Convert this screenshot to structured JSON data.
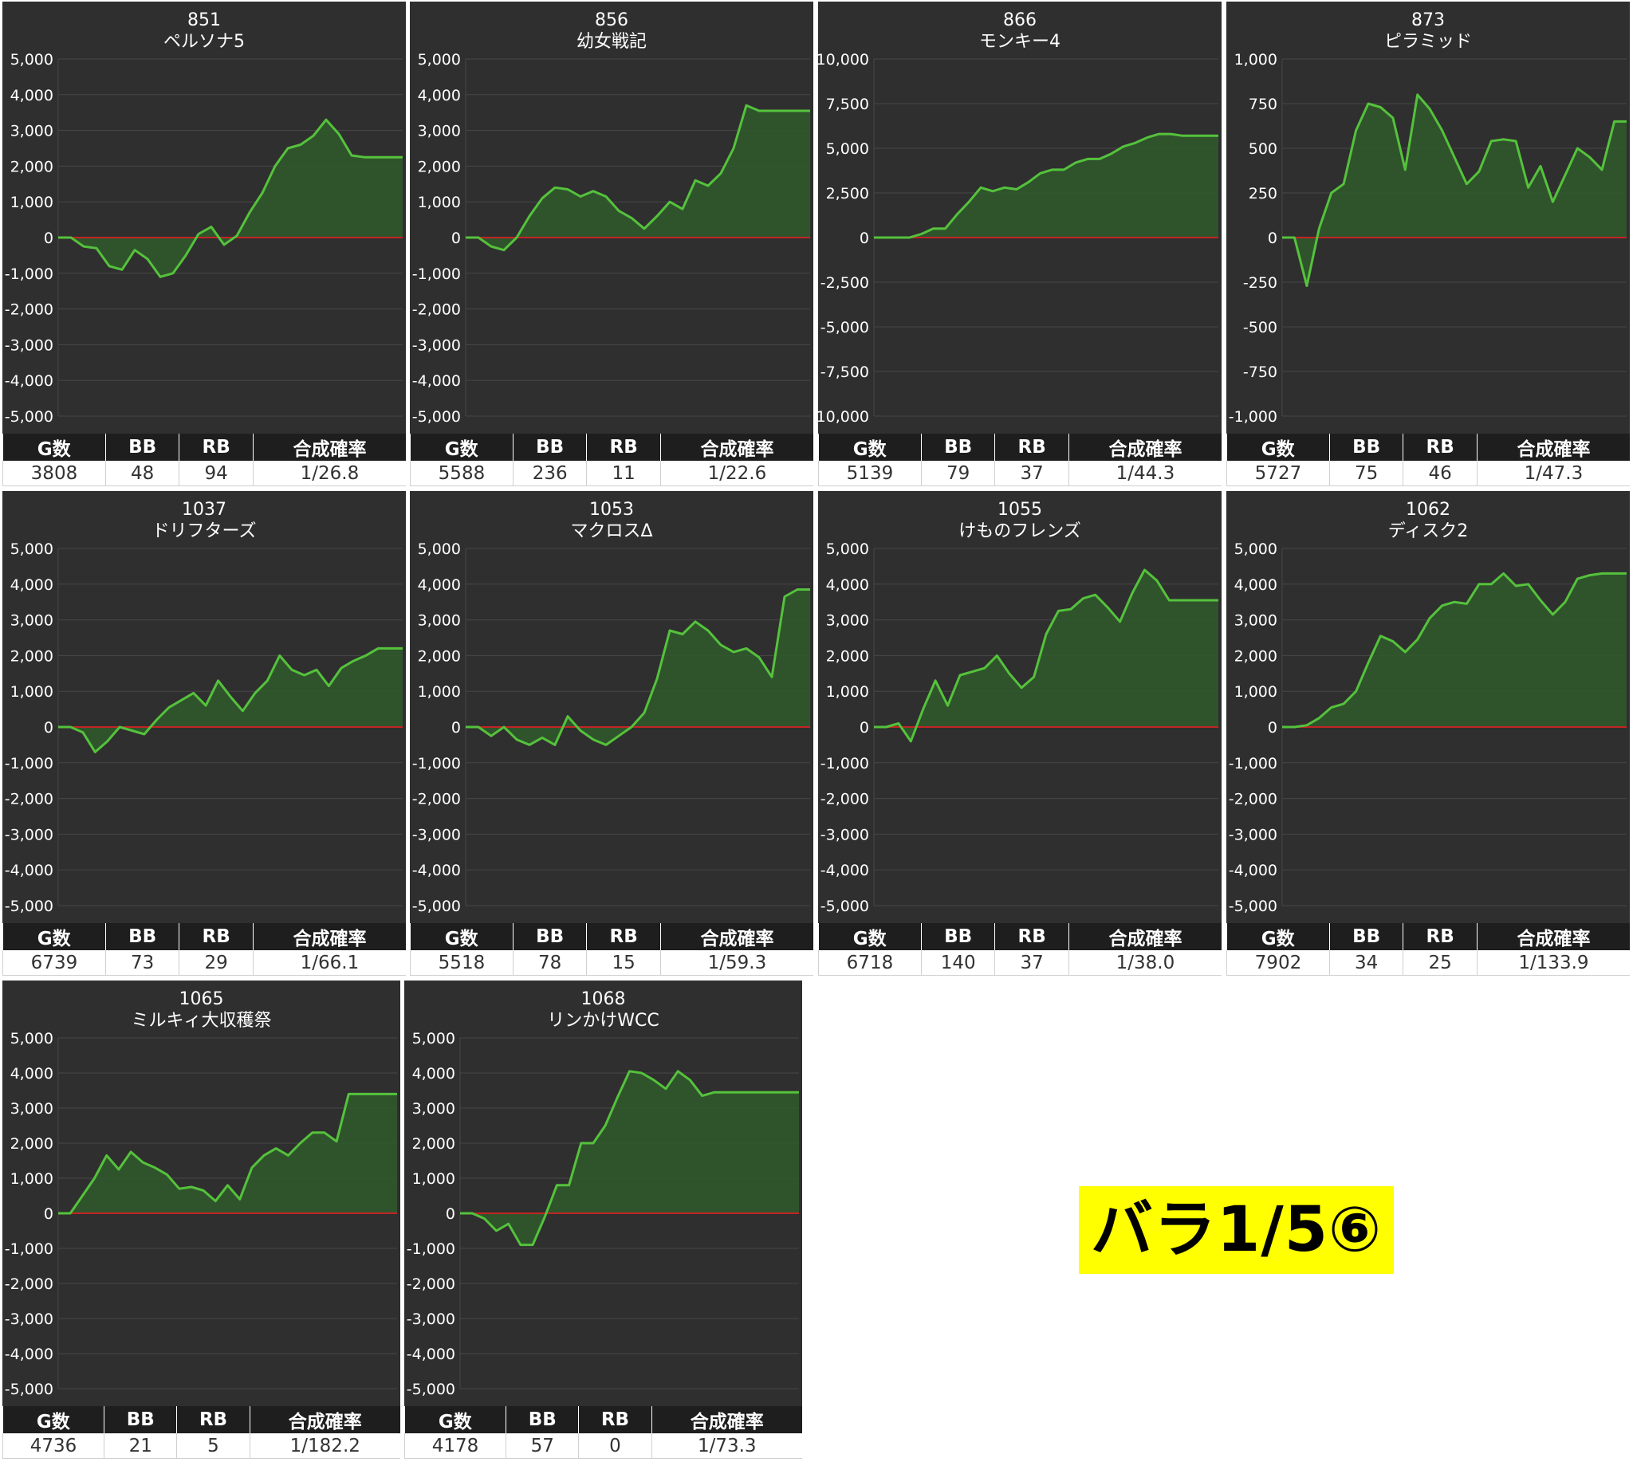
{
  "caption": "バラ1/5⑥",
  "colors": {
    "panel_bg": "#2f2f2f",
    "grid": "#474747",
    "line": "#55c23c",
    "area": "#2f5a2c",
    "zero_line": "#c42424",
    "header_bg": "#1e1e1e",
    "caption_bg": "#ffff00"
  },
  "table_headers": [
    "G数",
    "BB",
    "RB",
    "合成確率"
  ],
  "charts": [
    {
      "machine_no": "851",
      "name": "ペルソナ5",
      "stats": {
        "g": "3808",
        "bb": "48",
        "rb": "94",
        "rate": "1/26.8"
      },
      "chart_data": {
        "type": "area",
        "ylim": [
          -5000,
          5000
        ],
        "yticks": [
          "5,000",
          "4,000",
          "3,000",
          "2,000",
          "1,000",
          "0",
          "-1,000",
          "-2,000",
          "-3,000",
          "-4,000",
          "-5,000"
        ],
        "values": [
          0,
          0,
          -250,
          -300,
          -800,
          -900,
          -350,
          -600,
          -1100,
          -1000,
          -500,
          100,
          300,
          -200,
          50,
          700,
          1250,
          2000,
          2500,
          2600,
          2850,
          3300,
          2900,
          2300,
          2250,
          2250,
          2250,
          2250
        ]
      }
    },
    {
      "machine_no": "856",
      "name": "幼女戦記",
      "stats": {
        "g": "5588",
        "bb": "236",
        "rb": "11",
        "rate": "1/22.6"
      },
      "chart_data": {
        "type": "area",
        "ylim": [
          -5000,
          5000
        ],
        "yticks": [
          "5,000",
          "4,000",
          "3,000",
          "2,000",
          "1,000",
          "0",
          "-1,000",
          "-2,000",
          "-3,000",
          "-4,000",
          "-5,000"
        ],
        "values": [
          0,
          0,
          -250,
          -350,
          0,
          600,
          1100,
          1400,
          1350,
          1150,
          1300,
          1150,
          750,
          550,
          250,
          600,
          1000,
          800,
          1600,
          1450,
          1800,
          2500,
          3700,
          3550,
          3550,
          3550,
          3550,
          3550
        ]
      }
    },
    {
      "machine_no": "866",
      "name": "モンキー4",
      "stats": {
        "g": "5139",
        "bb": "79",
        "rb": "37",
        "rate": "1/44.3"
      },
      "chart_data": {
        "type": "area",
        "ylim": [
          -10000,
          10000
        ],
        "yticks": [
          "10,000",
          "7,500",
          "5,000",
          "2,500",
          "0",
          "-2,500",
          "-5,000",
          "-7,500",
          "-10,000"
        ],
        "values": [
          0,
          0,
          0,
          0,
          200,
          500,
          500,
          1300,
          2000,
          2800,
          2600,
          2800,
          2700,
          3100,
          3600,
          3800,
          3800,
          4200,
          4400,
          4400,
          4700,
          5100,
          5300,
          5600,
          5800,
          5800,
          5700,
          5700,
          5700,
          5700
        ]
      }
    },
    {
      "machine_no": "873",
      "name": "ピラミッド",
      "stats": {
        "g": "5727",
        "bb": "75",
        "rb": "46",
        "rate": "1/47.3"
      },
      "chart_data": {
        "type": "area",
        "ylim": [
          -1000,
          1000
        ],
        "yticks": [
          "1,000",
          "750",
          "500",
          "250",
          "0",
          "-250",
          "-500",
          "-750",
          "-1,000"
        ],
        "values": [
          0,
          0,
          -270,
          50,
          250,
          300,
          600,
          750,
          730,
          670,
          380,
          800,
          720,
          600,
          450,
          300,
          370,
          540,
          550,
          540,
          280,
          400,
          200,
          350,
          500,
          450,
          380,
          650,
          650
        ]
      }
    },
    {
      "machine_no": "1037",
      "name": "ドリフターズ",
      "stats": {
        "g": "6739",
        "bb": "73",
        "rb": "29",
        "rate": "1/66.1"
      },
      "chart_data": {
        "type": "area",
        "ylim": [
          -5000,
          5000
        ],
        "yticks": [
          "5,000",
          "4,000",
          "3,000",
          "2,000",
          "1,000",
          "0",
          "-1,000",
          "-2,000",
          "-3,000",
          "-4,000",
          "-5,000"
        ],
        "values": [
          0,
          0,
          -150,
          -700,
          -400,
          0,
          -100,
          -200,
          200,
          550,
          750,
          950,
          600,
          1300,
          850,
          450,
          950,
          1300,
          2000,
          1600,
          1450,
          1600,
          1150,
          1650,
          1850,
          2000,
          2200,
          2200,
          2200
        ]
      }
    },
    {
      "machine_no": "1053",
      "name": "マクロスΔ",
      "stats": {
        "g": "5518",
        "bb": "78",
        "rb": "15",
        "rate": "1/59.3"
      },
      "chart_data": {
        "type": "area",
        "ylim": [
          -5000,
          5000
        ],
        "yticks": [
          "5,000",
          "4,000",
          "3,000",
          "2,000",
          "1,000",
          "0",
          "-1,000",
          "-2,000",
          "-3,000",
          "-4,000",
          "-5,000"
        ],
        "values": [
          0,
          0,
          -250,
          0,
          -350,
          -500,
          -300,
          -500,
          300,
          -100,
          -350,
          -500,
          -250,
          0,
          400,
          1350,
          2700,
          2600,
          2950,
          2700,
          2300,
          2100,
          2200,
          1950,
          1400,
          3650,
          3850,
          3850
        ]
      }
    },
    {
      "machine_no": "1055",
      "name": "けものフレンズ",
      "stats": {
        "g": "6718",
        "bb": "140",
        "rb": "37",
        "rate": "1/38.0"
      },
      "chart_data": {
        "type": "area",
        "ylim": [
          -5000,
          5000
        ],
        "yticks": [
          "5,000",
          "4,000",
          "3,000",
          "2,000",
          "1,000",
          "0",
          "-1,000",
          "-2,000",
          "-3,000",
          "-4,000",
          "-5,000"
        ],
        "values": [
          0,
          0,
          100,
          -400,
          500,
          1300,
          600,
          1450,
          1550,
          1650,
          2000,
          1500,
          1100,
          1400,
          2600,
          3250,
          3300,
          3600,
          3700,
          3350,
          2950,
          3750,
          4400,
          4100,
          3550,
          3550,
          3550,
          3550,
          3550
        ]
      }
    },
    {
      "machine_no": "1062",
      "name": "ディスク2",
      "stats": {
        "g": "7902",
        "bb": "34",
        "rb": "25",
        "rate": "1/133.9"
      },
      "chart_data": {
        "type": "area",
        "ylim": [
          -5000,
          5000
        ],
        "yticks": [
          "5,000",
          "4,000",
          "3,000",
          "2,000",
          "1,000",
          "0",
          "-1,000",
          "-2,000",
          "-3,000",
          "-4,000",
          "-5,000"
        ],
        "values": [
          0,
          0,
          50,
          250,
          550,
          650,
          1000,
          1800,
          2550,
          2400,
          2100,
          2450,
          3050,
          3400,
          3500,
          3450,
          4000,
          4000,
          4300,
          3950,
          4000,
          3550,
          3150,
          3500,
          4150,
          4250,
          4300,
          4300,
          4300
        ]
      }
    },
    {
      "machine_no": "1065",
      "name": "ミルキィ大収穫祭",
      "stats": {
        "g": "4736",
        "bb": "21",
        "rb": "5",
        "rate": "1/182.2"
      },
      "chart_data": {
        "type": "area",
        "ylim": [
          -5000,
          5000
        ],
        "yticks": [
          "5,000",
          "4,000",
          "3,000",
          "2,000",
          "1,000",
          "0",
          "-1,000",
          "-2,000",
          "-3,000",
          "-4,000",
          "-5,000"
        ],
        "values": [
          0,
          0,
          500,
          1000,
          1650,
          1250,
          1750,
          1450,
          1300,
          1100,
          700,
          750,
          650,
          350,
          800,
          400,
          1300,
          1650,
          1850,
          1650,
          2000,
          2300,
          2300,
          2050,
          3400,
          3400,
          3400,
          3400,
          3400
        ]
      }
    },
    {
      "machine_no": "1068",
      "name": "リンかけWCC",
      "stats": {
        "g": "4178",
        "bb": "57",
        "rb": "0",
        "rate": "1/73.3"
      },
      "chart_data": {
        "type": "area",
        "ylim": [
          -5000,
          5000
        ],
        "yticks": [
          "5,000",
          "4,000",
          "3,000",
          "2,000",
          "1,000",
          "0",
          "-1,000",
          "-2,000",
          "-3,000",
          "-4,000",
          "-5,000"
        ],
        "values": [
          0,
          0,
          -150,
          -500,
          -300,
          -900,
          -900,
          -100,
          800,
          800,
          2000,
          2000,
          2500,
          3300,
          4050,
          4000,
          3800,
          3550,
          4050,
          3800,
          3350,
          3450,
          3450,
          3450,
          3450,
          3450,
          3450,
          3450,
          3450
        ]
      }
    }
  ]
}
